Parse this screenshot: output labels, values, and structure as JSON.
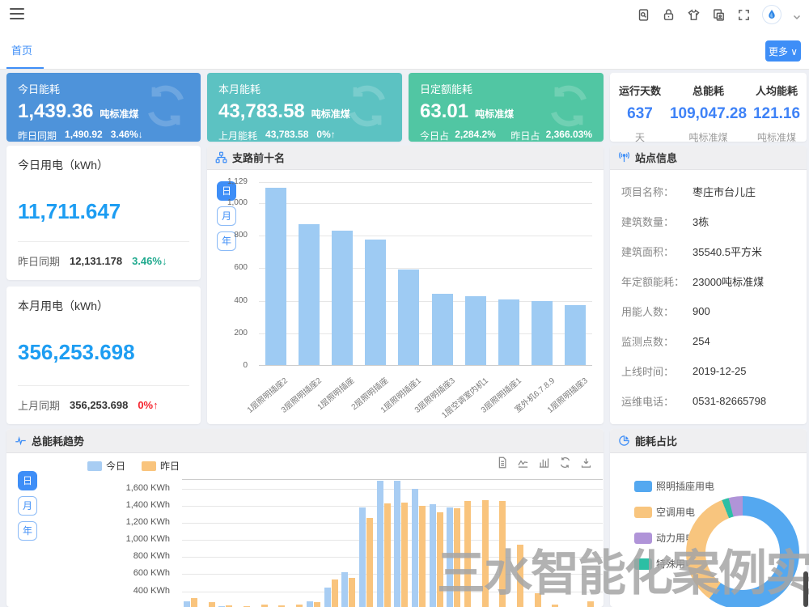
{
  "topbar": {
    "icons": [
      "file-search",
      "lock",
      "theme-shirt",
      "id-card",
      "fullscreen"
    ],
    "avatar": "water-drop-logo"
  },
  "tabs": {
    "home": "首页",
    "more": "更多 ∨"
  },
  "kpi_cards": [
    {
      "title": "今日能耗",
      "value": "1,439.36",
      "unit": "吨标准煤",
      "sub_label": "昨日同期",
      "sub_value": "1,490.92",
      "sub_pct": "3.46%↓",
      "bg": "#4e93da"
    },
    {
      "title": "本月能耗",
      "value": "43,783.58",
      "unit": "吨标准煤",
      "sub_label": "上月能耗",
      "sub_value": "43,783.58",
      "sub_pct": "0%↑",
      "bg": "#5cc2c2"
    },
    {
      "title": "日定额能耗",
      "value": "63.01",
      "unit": "吨标准煤",
      "sub_label": "今日占比：",
      "sub_value": "2,284.2%",
      "sub_label2": "昨日占比：",
      "sub_value2": "2,366.03%",
      "bg": "#51c6a3"
    }
  ],
  "stats": [
    {
      "label": "运行天数",
      "value": "637",
      "unit": "天"
    },
    {
      "label": "总能耗",
      "value": "109,047.28",
      "unit": "吨标准煤"
    },
    {
      "label": "人均能耗",
      "value": "121.16",
      "unit": "吨标准煤"
    }
  ],
  "usage_cards": [
    {
      "title": "今日用电（kWh）",
      "value": "11,711.647",
      "compare_label": "昨日同期",
      "compare_value": "12,131.178",
      "pct": "3.46%↓",
      "pct_color": "#1fa98e"
    },
    {
      "title": "本月用电（kWh）",
      "value": "356,253.698",
      "compare_label": "上月同期",
      "compare_value": "356,253.698",
      "pct": "0%↑",
      "pct_color": "#f5222d"
    }
  ],
  "branch_panel": {
    "title": "支路前十名",
    "period_buttons": [
      "日",
      "月",
      "年"
    ],
    "active_period": 0
  },
  "site_info": {
    "title": "站点信息",
    "rows": [
      {
        "label": "项目名称：",
        "value": "枣庄市台儿庄"
      },
      {
        "label": "建筑数量：",
        "value": "3栋"
      },
      {
        "label": "建筑面积：",
        "value": "35540.5平方米"
      },
      {
        "label": "年定额能耗：",
        "value": "23000吨标准煤"
      },
      {
        "label": "用能人数：",
        "value": "900"
      },
      {
        "label": "监测点数：",
        "value": "254"
      },
      {
        "label": "上线时间：",
        "value": "2019-12-25"
      },
      {
        "label": "运维电话：",
        "value": "0531-82665798"
      }
    ]
  },
  "trend_panel": {
    "title": "总能耗趋势",
    "period_buttons": [
      "日",
      "月",
      "年"
    ],
    "active_period": 0,
    "toolbox": [
      "data-view",
      "line-chart",
      "bar-chart",
      "refresh",
      "download"
    ]
  },
  "pie_panel": {
    "title": "能耗占比"
  },
  "watermark": "三水智能化案例实拍",
  "colors": {
    "accent": "#3e8ef7",
    "value_blue": "#1d9df2",
    "stat_blue": "#3e82f7",
    "up_red": "#f5222d",
    "down_green": "#1fa98e",
    "bar_blue": "#9ecbf3",
    "bar_orange": "#f9c47d"
  },
  "chart_data": [
    {
      "id": "branch_top10",
      "type": "bar",
      "title": "支路前十名",
      "categories": [
        "1层照明插座2",
        "3层照明插座2",
        "1层照明插座",
        "2层照明插座",
        "1层照明插座1",
        "3层照明插座3",
        "1层空调室内机1",
        "3层照明插座1",
        "室外机6.7.8.9",
        "1层照明插座3"
      ],
      "values": [
        1090,
        865,
        825,
        770,
        585,
        440,
        425,
        402,
        395,
        368
      ],
      "ylim": [
        0,
        1129
      ],
      "y_ticks": [
        {
          "v": 0,
          "label": "0"
        },
        {
          "v": 200,
          "label": "200"
        },
        {
          "v": 400,
          "label": "400"
        },
        {
          "v": 600,
          "label": "600"
        },
        {
          "v": 800,
          "label": "800"
        },
        {
          "v": 1000,
          "label": "1,000"
        },
        {
          "v": 1129,
          "label": "1,129"
        }
      ],
      "bar_color": "#9ecbf3",
      "grid": true
    },
    {
      "id": "energy_trend",
      "type": "bar",
      "title": "总能耗趋势",
      "x_hours": [
        0,
        1,
        2,
        3,
        4,
        5,
        6,
        7,
        8,
        9,
        10,
        11,
        12,
        13,
        14,
        15,
        16,
        17,
        18,
        19,
        20,
        21,
        22,
        23
      ],
      "xaxis_labels_visible": false,
      "ylim": [
        0,
        1700
      ],
      "y_unit": "KWh",
      "y_ticks_visible": [
        "400 KWh",
        "600 KWh",
        "800 KWh",
        "1,000 KWh",
        "1,200 KWh",
        "1,400 KWh",
        "1,600 KWh"
      ],
      "legend_position": "top",
      "series": [
        {
          "name": "今日",
          "color": "#a8cdf3",
          "values": [
            280,
            20,
            230,
            15,
            10,
            10,
            15,
            280,
            440,
            620,
            1375,
            1690,
            1690,
            1600,
            1420,
            1375,
            null,
            null,
            null,
            null,
            null,
            null,
            null,
            null
          ]
        },
        {
          "name": "昨日",
          "color": "#f9c47d",
          "values": [
            320,
            270,
            240,
            230,
            250,
            240,
            250,
            270,
            540,
            555,
            1260,
            1430,
            1440,
            1400,
            1325,
            1365,
            1450,
            1465,
            1455,
            940,
            380,
            250,
            200,
            280
          ]
        }
      ]
    },
    {
      "id": "energy_share",
      "type": "pie",
      "title": "能耗占比",
      "slices": [
        {
          "label": "照明插座用电",
          "color": "#54a8f0",
          "pct": 60,
          "start_pct": 0,
          "end_pct": 60
        },
        {
          "label": "空调用电",
          "color": "#f8c57e",
          "pct": 34,
          "start_pct": 60,
          "end_pct": 94
        },
        {
          "label": "动力用电",
          "color": "#b094d8",
          "pct": 4,
          "start_pct": 96,
          "end_pct": 100
        },
        {
          "label": "特殊用电",
          "color": "#2cbfa4",
          "pct": 2,
          "start_pct": 94,
          "end_pct": 96
        }
      ],
      "donut": true
    }
  ]
}
